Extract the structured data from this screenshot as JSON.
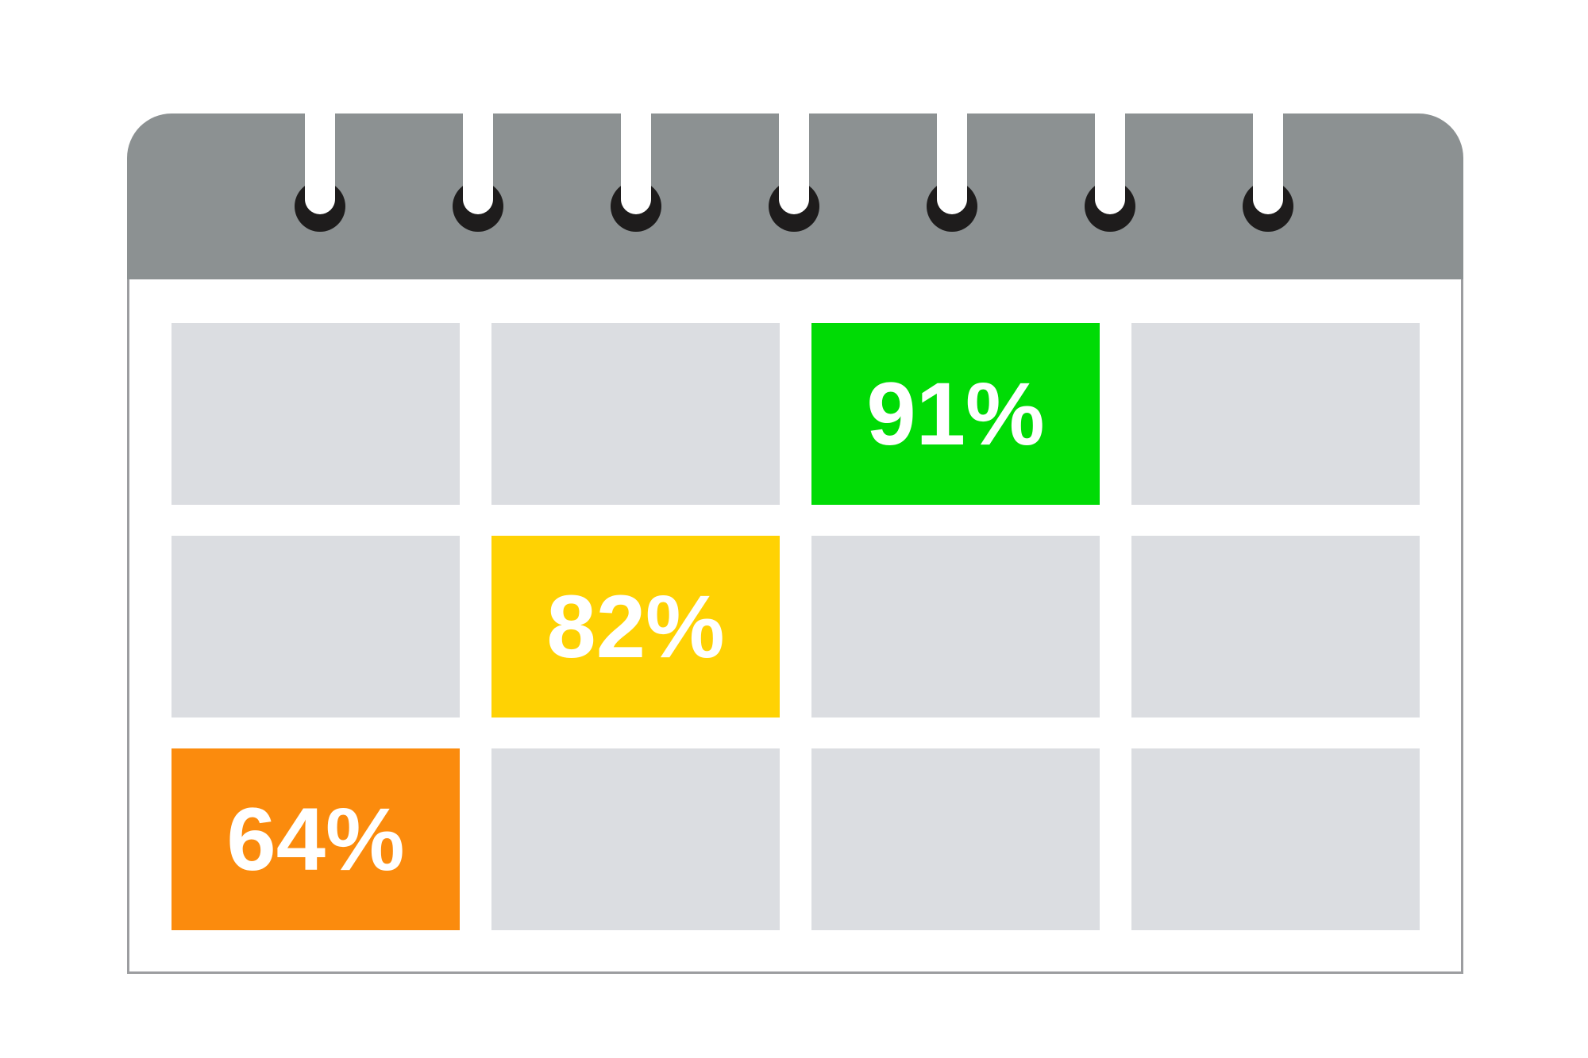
{
  "figure": {
    "type": "calendar-infographic",
    "background": "#FFFFFF"
  },
  "calendar": {
    "header": {
      "color": "#8C9192",
      "ring_color": "#1E1C1C",
      "ring_count": 7
    },
    "body": {
      "background": "#FFFFFF",
      "border_color": "#9C9DA0"
    },
    "cell_default_color": "#DBDDE1",
    "label_color": "#FFFFFF",
    "rows": 3,
    "cols": 4,
    "highlights": [
      {
        "row": 1,
        "col": 3,
        "label": "91%",
        "color": "#00DB05"
      },
      {
        "row": 2,
        "col": 2,
        "label": "82%",
        "color": "#FFD203"
      },
      {
        "row": 3,
        "col": 1,
        "label": "64%",
        "color": "#FB8B0D"
      }
    ]
  }
}
